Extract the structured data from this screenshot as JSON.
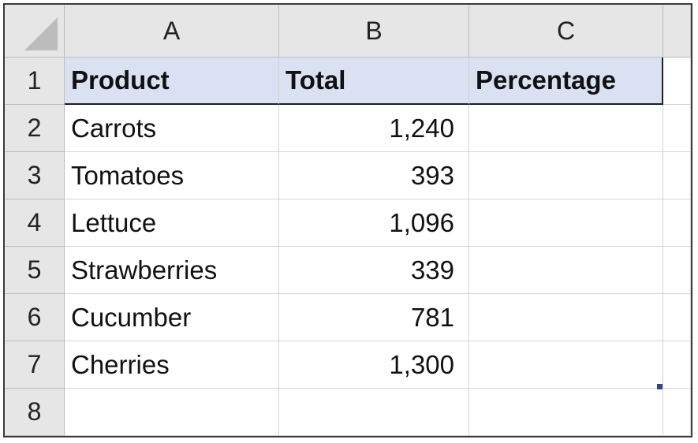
{
  "sheet": {
    "column_headers": [
      "A",
      "B",
      "C"
    ],
    "row_headers": [
      "1",
      "2",
      "3",
      "4",
      "5",
      "6",
      "7",
      "8"
    ],
    "header_fill": "#d9e1f2",
    "headers": {
      "product": "Product",
      "total": "Total",
      "percentage": "Percentage"
    },
    "rows": [
      {
        "product": "Carrots",
        "total": "1,240",
        "percentage": ""
      },
      {
        "product": "Tomatoes",
        "total": "393",
        "percentage": ""
      },
      {
        "product": "Lettuce",
        "total": "1,096",
        "percentage": ""
      },
      {
        "product": "Strawberries",
        "total": "339",
        "percentage": ""
      },
      {
        "product": "Cucumber",
        "total": "781",
        "percentage": ""
      },
      {
        "product": "Cherries",
        "total": "1,300",
        "percentage": ""
      },
      {
        "product": "",
        "total": "",
        "percentage": ""
      }
    ]
  }
}
